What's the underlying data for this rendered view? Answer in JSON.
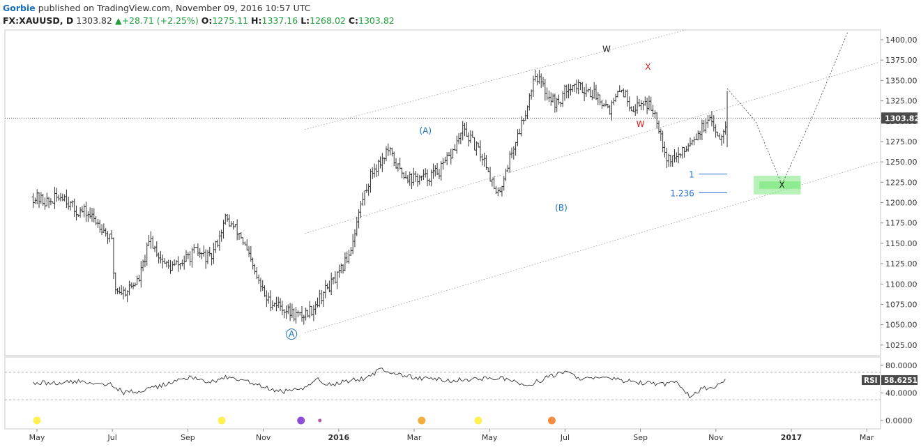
{
  "header": {
    "author": "Gorbie",
    "published_text": " published on TradingView.com, November 09, 2016 10:57 UTC"
  },
  "symbol_line": {
    "symbol": "FX:XAUUSD, D",
    "last": "1303.82",
    "change_arrow": "▲",
    "change": "+28.71 (+2.25%)",
    "o_label": "O:",
    "o_value": "1275.11",
    "h_label": "H:",
    "h_value": "1337.16",
    "l_label": "L:",
    "l_value": "1268.02",
    "c_label": "C:",
    "c_value": "1303.82"
  },
  "colors": {
    "bars": "#333333",
    "wave_blue": "#1b6fb8",
    "wave_red": "#d11a1a",
    "target_zone": "#7ee87e",
    "fib_line": "#2a6fd6"
  },
  "chart_data": {
    "type": "line",
    "title": "FX:XAUUSD, D",
    "price_axis": {
      "ticks": [
        "1025.00",
        "1050.00",
        "1075.00",
        "1100.00",
        "1125.00",
        "1150.00",
        "1175.00",
        "1200.00",
        "1225.00",
        "1250.00",
        "1275.00",
        "1300.00",
        "1325.00",
        "1350.00",
        "1375.00",
        "1400.00"
      ],
      "tick_values": [
        1025,
        1050,
        1075,
        1100,
        1125,
        1150,
        1175,
        1200,
        1225,
        1250,
        1275,
        1300,
        1325,
        1350,
        1375,
        1400
      ],
      "ylim": [
        1012,
        1412
      ],
      "last_price_label": "1303.82",
      "last_price": 1303.82
    },
    "time_axis": {
      "labels": [
        "May",
        "Jul",
        "Sep",
        "Nov",
        "2016",
        "Mar",
        "May",
        "Jul",
        "Sep",
        "Nov",
        "2017",
        "Mar"
      ],
      "months": [
        0,
        2,
        4,
        6,
        8,
        10,
        12,
        14,
        16,
        18,
        20,
        22
      ]
    },
    "series": [
      {
        "name": "XAUUSD daily close",
        "x": [
          -0.1,
          0.3,
          0.7,
          1.0,
          1.3,
          1.7,
          2.0,
          2.05,
          2.3,
          2.7,
          3.0,
          3.3,
          3.5,
          3.8,
          4.2,
          4.6,
          5.0,
          5.4,
          5.8,
          6.1,
          6.4,
          6.7,
          7.0,
          7.3,
          7.6,
          8.0,
          8.3,
          8.6,
          8.9,
          9.1,
          9.3,
          9.6,
          9.9,
          10.3,
          10.7,
          11.0,
          11.3,
          11.6,
          11.9,
          12.2,
          12.5,
          12.8,
          13.0,
          13.2,
          13.5,
          13.8,
          14.1,
          14.5,
          14.9,
          15.2,
          15.5,
          15.8,
          16.1,
          16.4,
          16.7,
          16.9,
          17.1,
          17.3,
          17.6,
          17.9,
          18.1,
          18.3
        ],
        "values": [
          1207,
          1200,
          1210,
          1190,
          1188,
          1172,
          1150,
          1095,
          1090,
          1105,
          1155,
          1130,
          1120,
          1125,
          1140,
          1130,
          1180,
          1160,
          1110,
          1080,
          1075,
          1065,
          1060,
          1070,
          1090,
          1110,
          1140,
          1200,
          1240,
          1250,
          1265,
          1240,
          1230,
          1230,
          1240,
          1260,
          1290,
          1270,
          1250,
          1205,
          1250,
          1290,
          1320,
          1360,
          1335,
          1320,
          1345,
          1340,
          1330,
          1315,
          1340,
          1315,
          1325,
          1310,
          1255,
          1255,
          1260,
          1275,
          1290,
          1300,
          1280,
          1304
        ]
      },
      {
        "name": "RSI",
        "x": [
          -0.1,
          0.5,
          1.0,
          1.5,
          2.0,
          2.3,
          3.0,
          3.5,
          4.0,
          4.5,
          5.0,
          5.5,
          6.0,
          6.3,
          6.7,
          7.0,
          7.4,
          7.8,
          8.3,
          8.8,
          9.1,
          9.5,
          10.0,
          10.5,
          11.0,
          11.5,
          12.0,
          12.5,
          13.0,
          13.5,
          14.0,
          14.5,
          15.0,
          15.5,
          16.0,
          16.5,
          17.0,
          17.3,
          17.6,
          18.0,
          18.3
        ],
        "values": [
          55,
          54,
          56,
          56,
          52,
          40,
          45,
          54,
          63,
          55,
          62,
          58,
          48,
          43,
          42,
          45,
          60,
          52,
          58,
          62,
          75,
          68,
          62,
          60,
          58,
          60,
          62,
          60,
          50,
          62,
          70,
          60,
          62,
          58,
          55,
          52,
          55,
          35,
          45,
          50,
          58.6251
        ]
      }
    ],
    "rsi_panel": {
      "label": "RSI",
      "value": "58.6251",
      "ticks": [
        "0.0000",
        "40.0000",
        "80.0000"
      ],
      "tick_values": [
        0,
        40,
        80
      ],
      "levels": [
        30,
        70
      ],
      "ylim": [
        -12,
        92
      ]
    },
    "annotations": {
      "wave_labels": [
        {
          "text": "A",
          "circled": true,
          "color": "blue",
          "month": 6.75,
          "price": 1035
        },
        {
          "text": "(A)",
          "color": "blue",
          "month": 10.3,
          "price": 1285
        },
        {
          "text": "(B)",
          "color": "blue",
          "month": 13.9,
          "price": 1190
        },
        {
          "text": "W",
          "color": "black",
          "month": 15.1,
          "price": 1385
        },
        {
          "text": "X",
          "color": "red",
          "month": 16.2,
          "price": 1363
        },
        {
          "text": "W",
          "color": "red",
          "month": 16.0,
          "price": 1293
        },
        {
          "text": "X",
          "color": "black",
          "month": 19.75,
          "price": 1218
        }
      ],
      "fib_levels": [
        {
          "text": "1",
          "price": 1235
        },
        {
          "text": "1.236",
          "price": 1212
        }
      ],
      "target_zone": {
        "price_top": 1233,
        "price_bottom": 1210,
        "month_start": 19.0,
        "month_end": 20.25
      }
    }
  },
  "event_markers": [
    {
      "month": 0.0,
      "color": "#ffee33"
    },
    {
      "month": 4.9,
      "color": "#ffee33"
    },
    {
      "month": 7.0,
      "color": "#7b2fd0"
    },
    {
      "month": 7.5,
      "color": "#a63a9f"
    },
    {
      "month": 10.2,
      "color": "#f0a020"
    },
    {
      "month": 11.7,
      "color": "#ffee33"
    },
    {
      "month": 13.65,
      "color": "#f07a20"
    }
  ]
}
